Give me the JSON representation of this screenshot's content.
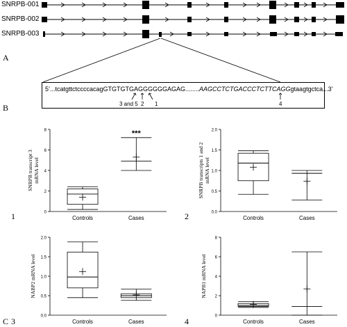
{
  "panel_a": {
    "letter": "A",
    "transcripts": [
      {
        "name": "SNRPB-001"
      },
      {
        "name": "SNRPB-002"
      },
      {
        "name": "SNRPB-003"
      }
    ]
  },
  "panel_b": {
    "letter": "B",
    "seq_prefix": "5’...tcatgttctccccacagGTGTGTGAGGGGGGAGAG........",
    "seq_italic": "AAGCCTCTGACCCTCTTCAGG",
    "seq_suffix": "gtaagtgctca...3’",
    "markers": [
      "3 and 5",
      "2",
      "1",
      "4"
    ]
  },
  "panel_c": {
    "letter": "C",
    "subpanel_numbers": [
      "1",
      "2",
      "3",
      "4"
    ]
  },
  "chart_data": [
    {
      "type": "box",
      "ylabel": "SNRPB transcript 3 mRNA level",
      "categories": [
        "Controls",
        "Cases"
      ],
      "ylim": [
        0,
        8
      ],
      "yticks": [
        "0",
        "2",
        "4",
        "6",
        "8"
      ],
      "annotation": "***",
      "boxes": [
        {
          "min": 0.2,
          "q1": 0.7,
          "median": 1.7,
          "q3": 2.2,
          "max": 2.4,
          "mean": 1.4
        },
        {
          "min": 4.0,
          "median": 4.9,
          "max": 7.2,
          "mean": 5.3,
          "q1": null,
          "q3": null
        }
      ]
    },
    {
      "type": "box",
      "ylabel": "SNRPB transcripts 1 and 2 mRNA level",
      "categories": [
        "Controls",
        "Cases"
      ],
      "ylim": [
        0,
        2
      ],
      "yticks": [
        "0.0",
        "0.5",
        "1.0",
        "1.5",
        "2.0"
      ],
      "boxes": [
        {
          "min": 0.42,
          "q1": 0.75,
          "median": 1.18,
          "q3": 1.42,
          "max": 1.48,
          "mean": 1.08
        },
        {
          "min": 0.28,
          "median": 0.93,
          "max": 1.0,
          "mean": 0.74,
          "q1": null,
          "q3": null
        }
      ]
    },
    {
      "type": "box",
      "ylabel": "NABP2 mRNA level",
      "categories": [
        "Controls",
        "Cases"
      ],
      "ylim": [
        0,
        2
      ],
      "yticks": [
        "0.0",
        "0.5",
        "1.0",
        "1.5",
        "2.0"
      ],
      "boxes": [
        {
          "min": 0.45,
          "q1": 0.7,
          "median": 0.98,
          "q3": 1.62,
          "max": 1.88,
          "mean": 1.12
        },
        {
          "min": 0.38,
          "q1": 0.45,
          "median": 0.5,
          "q3": 0.55,
          "max": 0.67,
          "mean": 0.52
        }
      ]
    },
    {
      "type": "box",
      "ylabel": "NAPB1 mRNA level",
      "categories": [
        "Controls",
        "Cases"
      ],
      "ylim": [
        0,
        8
      ],
      "yticks": [
        "0",
        "2",
        "4",
        "6",
        "8"
      ],
      "boxes": [
        {
          "min": 0.8,
          "q1": 0.9,
          "median": 1.0,
          "q3": 1.2,
          "max": 1.4,
          "mean": 1.1
        },
        {
          "min": 0.0,
          "median": 0.9,
          "max": 6.5,
          "mean": 2.7,
          "q1": null,
          "q3": null
        }
      ]
    }
  ]
}
